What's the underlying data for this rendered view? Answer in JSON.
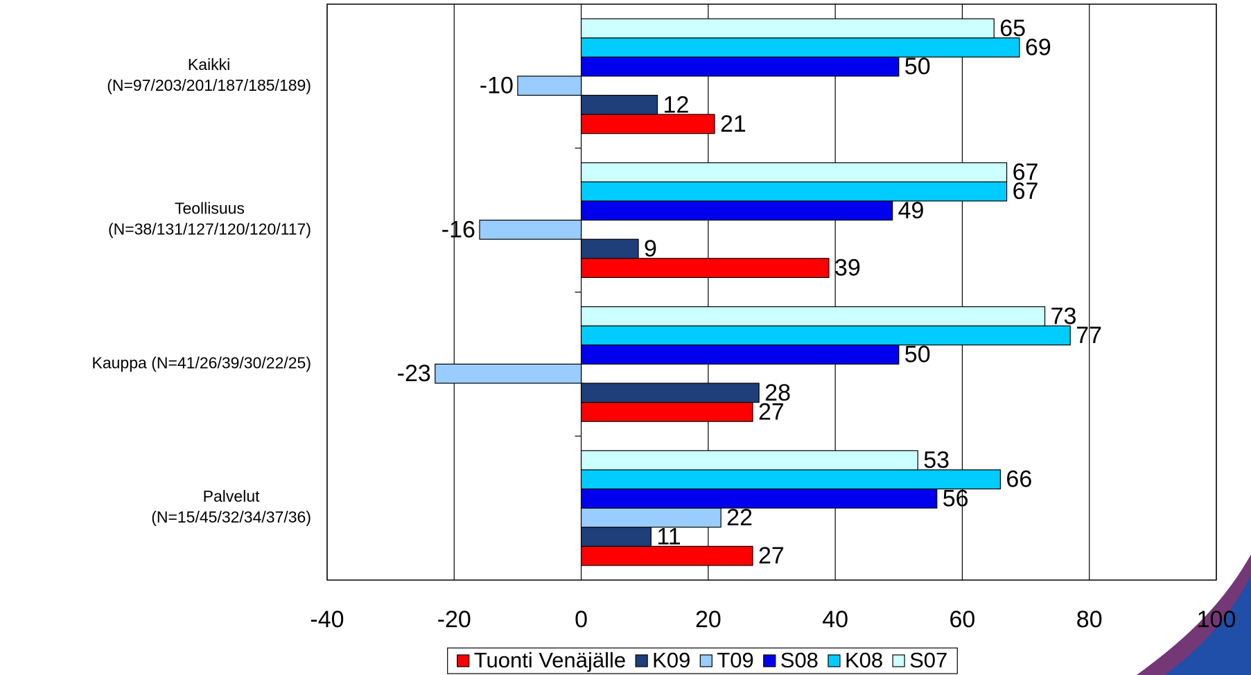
{
  "chart_data": {
    "type": "barh",
    "categories": [
      [
        "Kaikki",
        "(N=97/203/201/187/185/189)"
      ],
      [
        "Teollisuus",
        "(N=38/131/127/120/120/117)"
      ],
      [
        "Kauppa (N=41/26/39/30/22/25)"
      ],
      [
        "Palvelut",
        "(N=15/45/32/34/37/36)"
      ]
    ],
    "series": [
      {
        "name": "Tuonti Venäjälle",
        "color": "#ff0000",
        "values": [
          21,
          39,
          27,
          27
        ]
      },
      {
        "name": "K09",
        "color": "#1f3f7a",
        "values": [
          12,
          9,
          28,
          11
        ]
      },
      {
        "name": "T09",
        "color": "#99ccff",
        "values": [
          -10,
          -16,
          -23,
          22
        ]
      },
      {
        "name": "S08",
        "color": "#0000ee",
        "values": [
          50,
          49,
          50,
          56
        ]
      },
      {
        "name": "K08",
        "color": "#00ccff",
        "values": [
          69,
          67,
          77,
          66
        ]
      },
      {
        "name": "S07",
        "color": "#ccffff",
        "values": [
          65,
          67,
          73,
          53
        ]
      }
    ],
    "xlim": [
      -40,
      100
    ],
    "xticks": [
      -40,
      -20,
      0,
      20,
      40,
      60,
      80,
      100
    ],
    "grid": true,
    "legend": "bottom"
  }
}
